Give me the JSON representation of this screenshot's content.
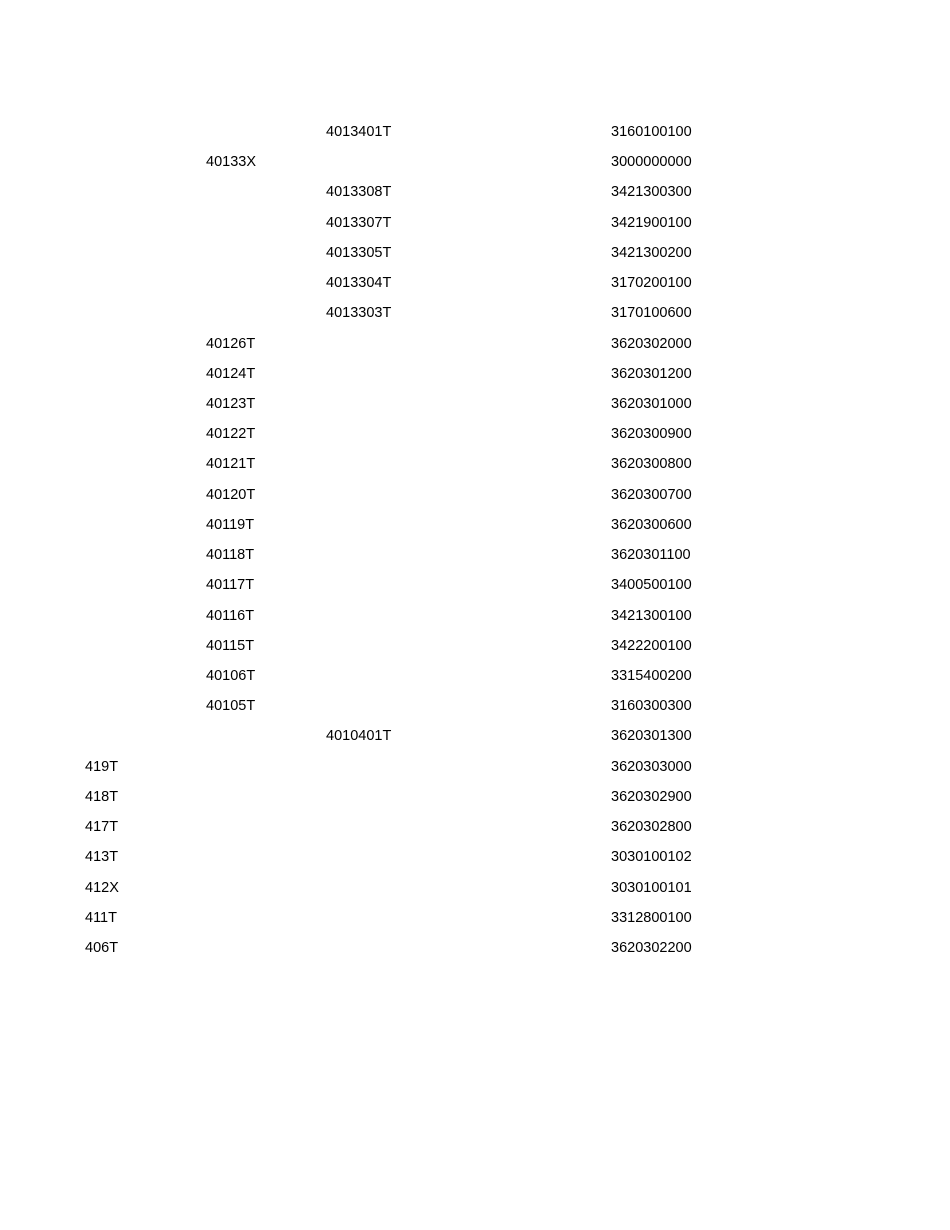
{
  "rows": [
    {
      "code": "4013401T",
      "level": 3,
      "value": "3160100100"
    },
    {
      "code": "40133X",
      "level": 2,
      "value": "3000000000"
    },
    {
      "code": "4013308T",
      "level": 3,
      "value": "3421300300"
    },
    {
      "code": "4013307T",
      "level": 3,
      "value": "3421900100"
    },
    {
      "code": "4013305T",
      "level": 3,
      "value": "3421300200"
    },
    {
      "code": "4013304T",
      "level": 3,
      "value": "3170200100"
    },
    {
      "code": "4013303T",
      "level": 3,
      "value": "3170100600"
    },
    {
      "code": "40126T",
      "level": 2,
      "value": "3620302000"
    },
    {
      "code": "40124T",
      "level": 2,
      "value": "3620301200"
    },
    {
      "code": "40123T",
      "level": 2,
      "value": "3620301000"
    },
    {
      "code": "40122T",
      "level": 2,
      "value": "3620300900"
    },
    {
      "code": "40121T",
      "level": 2,
      "value": "3620300800"
    },
    {
      "code": "40120T",
      "level": 2,
      "value": "3620300700"
    },
    {
      "code": "40119T",
      "level": 2,
      "value": "3620300600"
    },
    {
      "code": "40118T",
      "level": 2,
      "value": "3620301100"
    },
    {
      "code": "40117T",
      "level": 2,
      "value": "3400500100"
    },
    {
      "code": "40116T",
      "level": 2,
      "value": "3421300100"
    },
    {
      "code": "40115T",
      "level": 2,
      "value": "3422200100"
    },
    {
      "code": "40106T",
      "level": 2,
      "value": "3315400200"
    },
    {
      "code": "40105T",
      "level": 2,
      "value": "3160300300"
    },
    {
      "code": "4010401T",
      "level": 3,
      "value": "3620301300"
    },
    {
      "code": "419T",
      "level": 1,
      "value": "3620303000"
    },
    {
      "code": "418T",
      "level": 1,
      "value": "3620302900"
    },
    {
      "code": "417T",
      "level": 1,
      "value": "3620302800"
    },
    {
      "code": "413T",
      "level": 1,
      "value": "3030100102"
    },
    {
      "code": "412X",
      "level": 1,
      "value": "3030100101"
    },
    {
      "code": "411T",
      "level": 1,
      "value": "3312800100"
    },
    {
      "code": "406T",
      "level": 1,
      "value": "3620302200"
    }
  ]
}
